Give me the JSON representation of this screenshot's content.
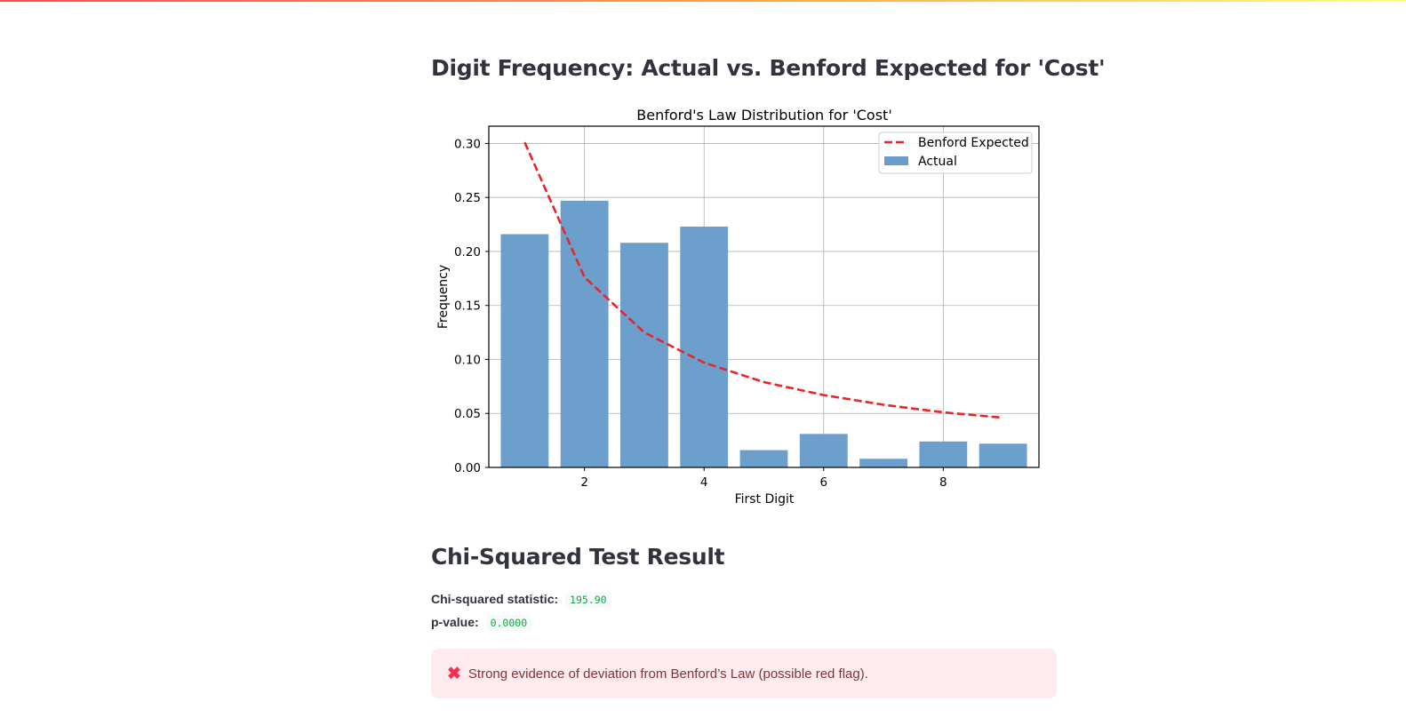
{
  "page": {
    "title1": "Digit Frequency: Actual vs. Benford Expected for 'Cost'",
    "title2": "Chi-Squared Test Result",
    "accent_gradient": [
      "#ff4b4b",
      "#ffa54b",
      "#fffd80"
    ]
  },
  "stats": {
    "chi_label": "Chi-squared statistic:",
    "chi_value": "195.90",
    "p_label": "p-value:",
    "p_value": "0.0000"
  },
  "alert": {
    "icon": "x-icon",
    "text": "Strong evidence of deviation from Benford’s Law (possible red flag).",
    "bg_color": "#ffebee",
    "text_color": "#7d353b"
  },
  "chart_data": {
    "type": "bar",
    "title": "Benford's Law Distribution for 'Cost'",
    "xlabel": "First Digit",
    "ylabel": "Frequency",
    "x": [
      1,
      2,
      3,
      4,
      5,
      6,
      7,
      8,
      9
    ],
    "xlim": [
      0.4,
      9.6
    ],
    "ylim": [
      0,
      0.316
    ],
    "xticks": [
      2,
      4,
      6,
      8
    ],
    "yticks": [
      0.0,
      0.05,
      0.1,
      0.15,
      0.2,
      0.25,
      0.3
    ],
    "grid": true,
    "legend": "top-right",
    "series": [
      {
        "name": "Actual",
        "kind": "bar",
        "color": "#6a9dcb",
        "values": [
          0.216,
          0.247,
          0.208,
          0.223,
          0.016,
          0.031,
          0.008,
          0.024,
          0.022
        ]
      },
      {
        "name": "Benford Expected",
        "kind": "line",
        "style": "dashed",
        "color": "#e8262a",
        "values": [
          0.301,
          0.176,
          0.125,
          0.097,
          0.079,
          0.067,
          0.058,
          0.051,
          0.046
        ]
      }
    ]
  }
}
